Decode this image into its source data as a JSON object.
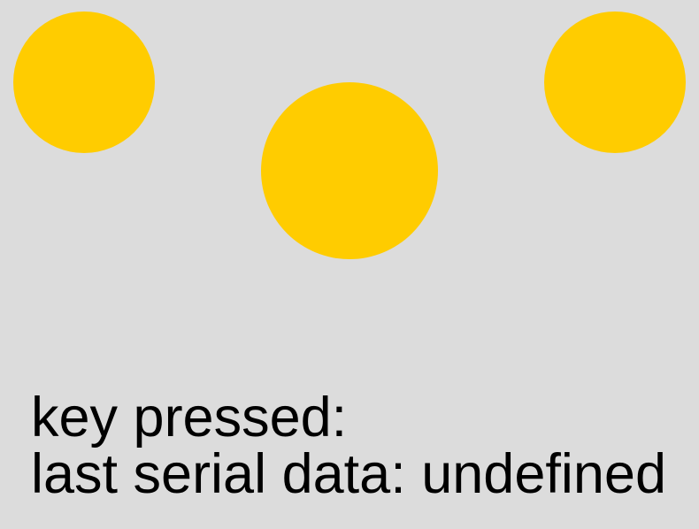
{
  "colors": {
    "background": "#dcdcdc",
    "circle_fill": "#ffcc00",
    "text": "#000000"
  },
  "status": {
    "key_pressed": "key pressed:",
    "last_serial_data": "last serial data: undefined"
  }
}
